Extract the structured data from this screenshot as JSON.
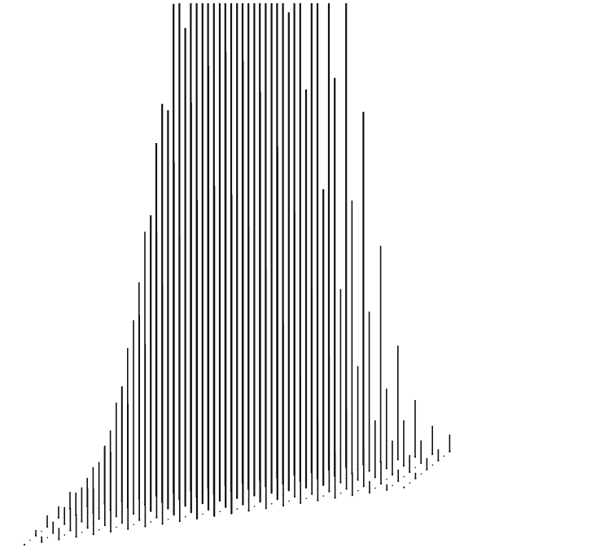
{
  "chart_data": {
    "type": "3d-stem",
    "title": "",
    "xlabel": "",
    "ylabel": "",
    "zlabel": "",
    "grid": false,
    "legend": "none",
    "colors": {
      "stem": "#111111",
      "background": "#ffffff"
    },
    "z_saturates_at": 1.0,
    "columns": [
      {
        "x": 0,
        "tall_heights": [
          0.0,
          0.01,
          0.02,
          0.02,
          0.03
        ]
      },
      {
        "x": 1,
        "tall_heights": [
          0.01,
          0.02,
          0.03,
          0.04,
          0.05
        ]
      },
      {
        "x": 2,
        "tall_heights": [
          0.02,
          0.04,
          0.06,
          0.08,
          0.1
        ]
      },
      {
        "x": 3,
        "tall_heights": [
          0.04,
          0.07,
          0.1,
          0.14,
          0.2
        ]
      },
      {
        "x": 4,
        "tall_heights": [
          0.08,
          0.14,
          0.2,
          0.28,
          0.38
        ]
      },
      {
        "x": 5,
        "tall_heights": [
          0.14,
          0.24,
          0.34,
          0.48,
          0.62
        ]
      },
      {
        "x": 6,
        "tall_heights": [
          0.22,
          0.36,
          0.52,
          0.7,
          0.86
        ]
      },
      {
        "x": 7,
        "tall_heights": [
          0.32,
          0.5,
          0.7,
          0.9,
          1.0
        ]
      },
      {
        "x": 8,
        "tall_heights": [
          0.42,
          0.62,
          0.84,
          1.0,
          1.0
        ]
      },
      {
        "x": 9,
        "tall_heights": [
          0.5,
          0.72,
          0.92,
          1.0,
          1.0
        ]
      },
      {
        "x": 10,
        "tall_heights": [
          0.56,
          0.78,
          0.96,
          1.0,
          1.0
        ]
      },
      {
        "x": 11,
        "tall_heights": [
          0.58,
          0.8,
          0.98,
          1.0,
          1.0
        ]
      },
      {
        "x": 12,
        "tall_heights": [
          0.56,
          0.78,
          0.96,
          1.0,
          1.0
        ]
      },
      {
        "x": 13,
        "tall_heights": [
          0.5,
          0.72,
          0.92,
          1.0,
          1.0
        ]
      },
      {
        "x": 14,
        "tall_heights": [
          0.42,
          0.62,
          0.84,
          1.0,
          1.0
        ]
      },
      {
        "x": 15,
        "tall_heights": [
          0.32,
          0.5,
          0.7,
          0.9,
          1.0
        ]
      },
      {
        "x": 16,
        "tall_heights": [
          0.22,
          0.36,
          0.52,
          0.7,
          0.86
        ]
      },
      {
        "x": 17,
        "tall_heights": [
          0.14,
          0.24,
          0.34,
          0.48,
          0.62
        ]
      },
      {
        "x": 18,
        "tall_heights": [
          0.08,
          0.14,
          0.2,
          0.28,
          0.38
        ]
      },
      {
        "x": 19,
        "tall_heights": [
          0.04,
          0.07,
          0.1,
          0.14,
          0.2
        ]
      },
      {
        "x": 20,
        "tall_heights": [
          0.02,
          0.04,
          0.06,
          0.08,
          0.1
        ]
      },
      {
        "x": 21,
        "tall_heights": [
          0.01,
          0.02,
          0.03,
          0.04,
          0.05
        ]
      },
      {
        "x": 22,
        "tall_heights": [
          0.0,
          0.01,
          0.02,
          0.02,
          0.03
        ]
      }
    ]
  }
}
